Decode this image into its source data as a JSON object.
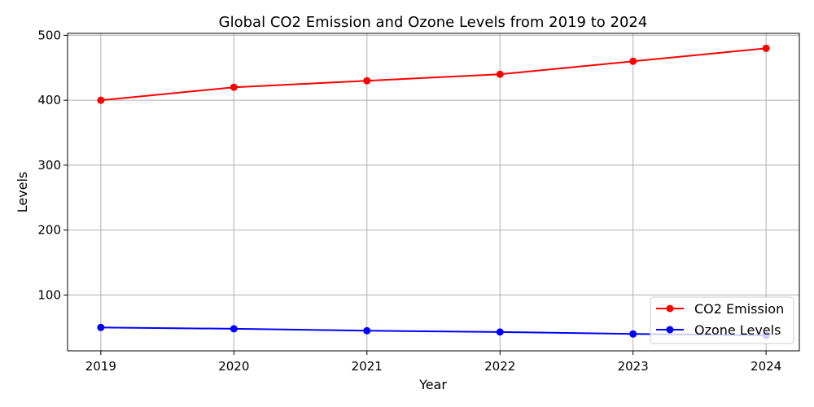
{
  "chart_data": {
    "type": "line",
    "title": "Global CO2 Emission and Ozone Levels from 2019 to 2024",
    "xlabel": "Year",
    "ylabel": "Levels",
    "categories": [
      "2019",
      "2020",
      "2021",
      "2022",
      "2023",
      "2024"
    ],
    "x": [
      2019,
      2020,
      2021,
      2022,
      2023,
      2024
    ],
    "xlim": [
      2018.75,
      2024.25
    ],
    "ylim": [
      14,
      503
    ],
    "yticks": [
      100,
      200,
      300,
      400,
      500
    ],
    "grid": true,
    "legend_position": "lower-right",
    "series": [
      {
        "name": "CO2 Emission",
        "color": "#ff0000",
        "marker": "circle",
        "values": [
          400,
          420,
          430,
          440,
          460,
          480
        ]
      },
      {
        "name": "Ozone Levels",
        "color": "#0000ff",
        "marker": "circle",
        "values": [
          50,
          48,
          45,
          43,
          40,
          38
        ]
      }
    ]
  }
}
